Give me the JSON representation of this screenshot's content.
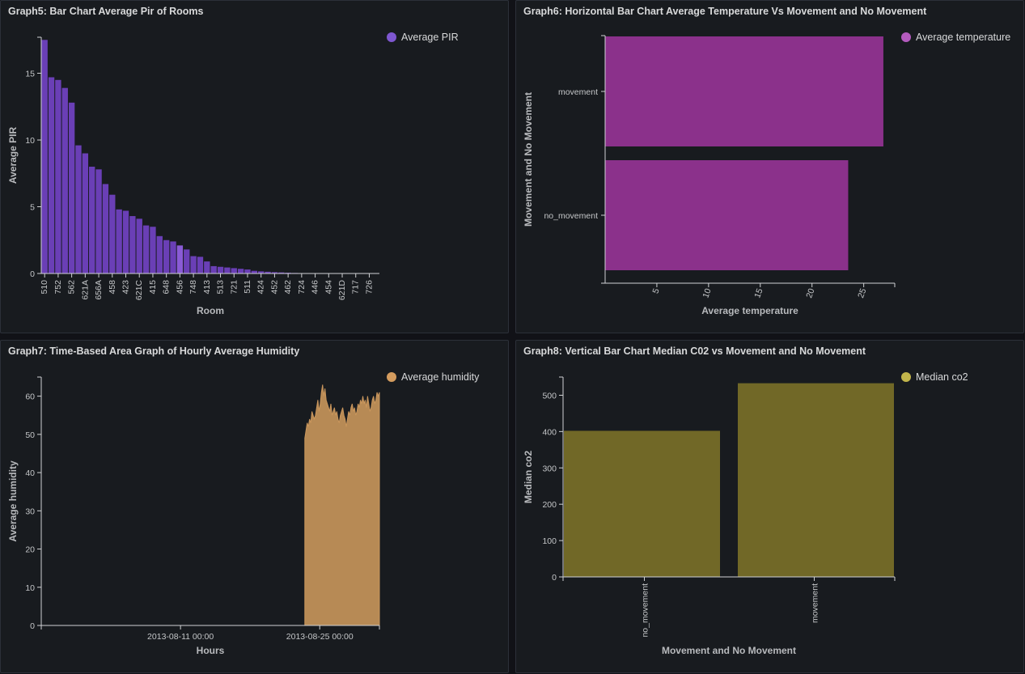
{
  "colors": {
    "pir": "#6a3fb6",
    "pir_highlight": "#8a5bd6",
    "temperature": "#8b318b",
    "temperature_dot": "#b45bbe",
    "humidity": "#b78a55",
    "humidity_dot": "#d49c5e",
    "co2": "#716827",
    "co2_dot": "#c2b54b"
  },
  "panels": {
    "g5": {
      "title": "Graph5: Bar Chart Average Pir of Rooms",
      "legend": "Average PIR"
    },
    "g6": {
      "title": "Graph6: Horizontal Bar Chart Average Temperature Vs Movement and No Movement",
      "legend": "Average temperature"
    },
    "g7": {
      "title": "Graph7: Time-Based Area Graph of Hourly Average Humidity",
      "legend": "Average humidity"
    },
    "g8": {
      "title": "Graph8: Vertical Bar Chart Median C02 vs Movement and No Movement",
      "legend": "Median co2"
    }
  },
  "chart_data": [
    {
      "id": "g5",
      "type": "bar",
      "title": "Graph5: Bar Chart Average Pir of Rooms",
      "xlabel": "Room",
      "ylabel": "Average PIR",
      "ylim": [
        0,
        17.7
      ],
      "yticks": [
        0,
        5,
        10,
        15
      ],
      "x_tick_labels": [
        "510",
        "752",
        "562",
        "621A",
        "656A",
        "458",
        "423",
        "621C",
        "415",
        "648",
        "456",
        "748",
        "413",
        "513",
        "721",
        "511",
        "424",
        "452",
        "462",
        "724",
        "446",
        "454",
        "621D",
        "717",
        "726"
      ],
      "series": [
        {
          "name": "Average PIR",
          "values": [
            17.5,
            14.7,
            14.5,
            13.9,
            12.8,
            9.6,
            9.0,
            8.0,
            7.8,
            6.7,
            5.9,
            4.8,
            4.7,
            4.3,
            4.1,
            3.6,
            3.5,
            2.8,
            2.5,
            2.4,
            2.1,
            1.8,
            1.3,
            1.25,
            0.9,
            0.55,
            0.5,
            0.45,
            0.4,
            0.35,
            0.3,
            0.2,
            0.16,
            0.13,
            0.1,
            0.08,
            0.06,
            0.04,
            0.03,
            0.02,
            0.02,
            0.01,
            0.01,
            0.01,
            0.0,
            0.0,
            0.0,
            0.0,
            0.0,
            0.0
          ],
          "highlight_index": 20
        }
      ],
      "grid": false,
      "legend": "top-right"
    },
    {
      "id": "g6",
      "type": "bar",
      "orientation": "horizontal",
      "title": "Graph6: Horizontal Bar Chart Average Temperature Vs Movement and No Movement",
      "xlabel": "Average temperature",
      "ylabel": "Movement and No Movement",
      "categories": [
        "movement",
        "no_movement"
      ],
      "values": [
        26.9,
        23.5
      ],
      "xlim": [
        0,
        28
      ],
      "xticks": [
        5,
        10,
        15,
        20,
        25
      ],
      "grid": false,
      "legend": "top-right"
    },
    {
      "id": "g7",
      "type": "area",
      "title": "Graph7: Time-Based Area Graph of Hourly Average Humidity",
      "xlabel": "Hours",
      "ylabel": "Average humidity",
      "ylim": [
        0,
        65
      ],
      "yticks": [
        0,
        10,
        20,
        30,
        40,
        50,
        60
      ],
      "x_ticks": [
        "2013-08-11 00:00",
        "2013-08-25 00:00"
      ],
      "x_range": [
        "2013-07-28 00:00",
        "2013-08-31 00:00"
      ],
      "series": [
        {
          "name": "Average humidity",
          "x_start": "2013-08-23 12:00",
          "x_end": "2013-08-31 00:00",
          "values": [
            49,
            51,
            53,
            52,
            54,
            53,
            56,
            55,
            54,
            55,
            57,
            59,
            56,
            58,
            61,
            63,
            60,
            62,
            59,
            58,
            57,
            56,
            58,
            55,
            56,
            57,
            55,
            56,
            54,
            53,
            55,
            56,
            57,
            55,
            54,
            52,
            54,
            56,
            55,
            57,
            58,
            56,
            57,
            55,
            56,
            58,
            57,
            59,
            58,
            60,
            58,
            59,
            57,
            60,
            58,
            56,
            57,
            59,
            60,
            58,
            59,
            61,
            60,
            61
          ]
        }
      ],
      "grid": false,
      "legend": "top-right"
    },
    {
      "id": "g8",
      "type": "bar",
      "title": "Graph8: Vertical Bar Chart Median C02 vs Movement and No Movement",
      "xlabel": "Movement and No Movement",
      "ylabel": "Median co2",
      "categories": [
        "no_movement",
        "movement"
      ],
      "values": [
        402,
        533
      ],
      "ylim": [
        0,
        550
      ],
      "yticks": [
        0,
        100,
        200,
        300,
        400,
        500
      ],
      "grid": false,
      "legend": "top-right"
    }
  ]
}
